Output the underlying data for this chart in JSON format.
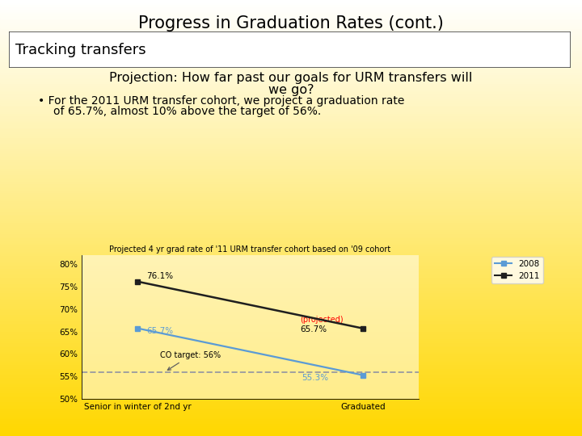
{
  "title": "Progress in Graduation Rates (cont.)",
  "section_label": "Tracking transfers",
  "subtitle_line1": "Projection: How far past our goals for URM transfers will",
  "subtitle_line2": "we go?",
  "bullet_line1": "• For the 2011 URM transfer cohort, we project a graduation rate",
  "bullet_line2": "of 65.7%, almost 10% above the target of 56%.",
  "chart_title": "Projected 4 yr grad rate of '11 URM transfer cohort based on '09 cohort",
  "x_labels": [
    "Senior in winter of 2nd yr",
    "Graduated"
  ],
  "series_2008": [
    65.7,
    55.3
  ],
  "series_2011": [
    76.1,
    65.7
  ],
  "target_line_y": 56.0,
  "ylim": [
    50,
    82
  ],
  "yticks": [
    50,
    55,
    60,
    65,
    70,
    75,
    80
  ],
  "ytick_labels": [
    "50%",
    "55%",
    "60%",
    "65%",
    "70%",
    "75%",
    "80%"
  ],
  "color_2008": "#5B9BD5",
  "color_2011": "#1F1F1F",
  "target_line_color": "#A0A0A0",
  "annotation_color_projected": "#FF0000",
  "co_target_label": "CO target: 56%",
  "projected_label": "(projected)",
  "label_76_1": "76.1%",
  "label_65_7_2008": "65.7%",
  "label_65_7_2011": "65.7%",
  "label_55_3": "55.3%",
  "legend_2008": "2008",
  "legend_2011": "2011",
  "bg_yellow": [
    1.0,
    0.843,
    0.0
  ],
  "bg_white": [
    1.0,
    1.0,
    1.0
  ]
}
